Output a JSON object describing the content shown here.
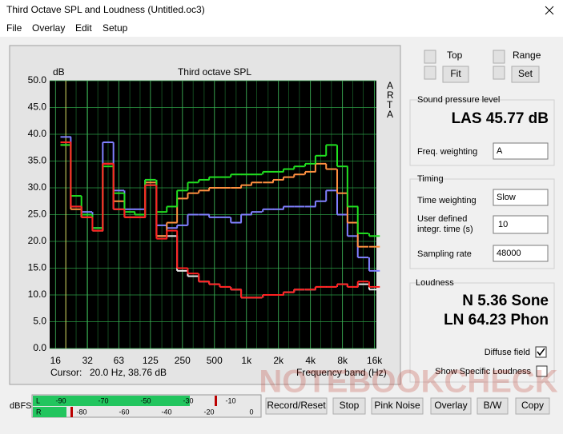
{
  "window": {
    "title": "Third Octave SPL and Loudness (Untitled.oc3)"
  },
  "menu": [
    "File",
    "Overlay",
    "Edit",
    "Setup"
  ],
  "chart_data": {
    "type": "step",
    "title": "Third octave SPL",
    "y_unit": "dB",
    "brand": "ARTA",
    "x_label": "Frequency band (Hz)",
    "cursor_label": "Cursor:",
    "cursor_value": "20.0 Hz, 38.76 dB",
    "x": [
      20,
      25,
      31.5,
      40,
      50,
      63,
      80,
      100,
      125,
      160,
      200,
      250,
      315,
      400,
      500,
      630,
      800,
      1000,
      1250,
      1600,
      2000,
      2500,
      3150,
      4000,
      5000,
      6300,
      8000,
      10000,
      12500,
      16000
    ],
    "xlim": [
      14.1,
      16670
    ],
    "xscale": "log",
    "xticks": [
      16,
      32,
      63,
      125,
      250,
      500,
      {
        "value": 1000,
        "label": "1k"
      },
      {
        "value": 2000,
        "label": "2k"
      },
      {
        "value": 4000,
        "label": "4k"
      },
      {
        "value": 8000,
        "label": "8k"
      },
      {
        "value": 16000,
        "label": "16k"
      }
    ],
    "ylim": [
      0,
      50
    ],
    "yticks": [
      {
        "value": 0,
        "label": "0.0"
      },
      {
        "value": 5,
        "label": "5.0"
      },
      {
        "value": 10,
        "label": "10.0"
      },
      {
        "value": 15,
        "label": "15.0"
      },
      {
        "value": 20,
        "label": "20.0"
      },
      {
        "value": 25,
        "label": "25.0"
      },
      {
        "value": 30,
        "label": "30.0"
      },
      {
        "value": 35,
        "label": "35.0"
      },
      {
        "value": 40,
        "label": "40.0"
      },
      {
        "value": 45,
        "label": "45.0"
      },
      {
        "value": 50,
        "label": "50.0"
      }
    ],
    "grid": true,
    "series": [
      {
        "color": "#e8e8e8",
        "values": [
          38.5,
          26.5,
          24.5,
          22,
          34.5,
          26,
          24.5,
          24.5,
          30.5,
          21,
          21,
          14.5,
          13.5,
          12.5,
          12,
          11.5,
          11,
          9.5,
          9.5,
          10,
          10,
          10.5,
          11,
          11,
          11.5,
          11.5,
          12,
          11.5,
          12,
          11
        ]
      },
      {
        "color": "#8080ff",
        "values": [
          39.5,
          26.5,
          25.5,
          22.5,
          38.5,
          29.5,
          26,
          26,
          31.5,
          23,
          22.5,
          23,
          25,
          25,
          24.5,
          24.5,
          23.5,
          25,
          25.5,
          26,
          26,
          26.5,
          26.5,
          26.5,
          27.5,
          29.5,
          25,
          21,
          17,
          14.5
        ]
      },
      {
        "color": "#ff9040",
        "values": [
          38,
          26,
          24.5,
          22,
          34.5,
          27.5,
          24.5,
          24.5,
          31,
          21,
          23.5,
          28,
          29,
          29.5,
          30,
          30,
          30,
          30.5,
          31,
          31,
          31.5,
          32,
          32.5,
          33,
          34.5,
          33.5,
          29,
          23.5,
          19,
          19
        ]
      },
      {
        "color": "#20e020",
        "values": [
          38,
          28.5,
          25,
          22.5,
          34,
          29,
          25.5,
          25,
          31.5,
          25.5,
          26.5,
          29.5,
          31,
          31.5,
          32,
          32,
          32.5,
          32.5,
          32.5,
          33,
          33,
          33.5,
          34,
          34.5,
          36,
          38,
          34,
          26.5,
          21.5,
          21
        ]
      },
      {
        "color": "#ff2020",
        "values": [
          38.5,
          26.5,
          24.5,
          22,
          34.5,
          26,
          24.5,
          24.5,
          30.5,
          20.5,
          22,
          15,
          14,
          12.5,
          12,
          11.5,
          11,
          9.5,
          9.5,
          10,
          10,
          10.5,
          11,
          11,
          11.5,
          11.5,
          12,
          11.5,
          12.5,
          11.5
        ]
      }
    ]
  },
  "controls": {
    "top": "Top",
    "fit": "Fit",
    "range": "Range",
    "set": "Set"
  },
  "spl": {
    "heading": "Sound pressure level",
    "reading": "LAS 45.77 dB",
    "weighting_label": "Freq. weighting",
    "weighting": "A"
  },
  "timing": {
    "heading": "Timing",
    "time_weighting_label": "Time weighting",
    "time_weighting": "Slow",
    "integr_label_1": "User defined",
    "integr_label_2": "integr. time (s)",
    "integr_time": "10",
    "rate_label": "Sampling rate",
    "rate": "48000"
  },
  "loudness": {
    "heading": "Loudness",
    "sone": "N 5.36 Sone",
    "phon": "LN 64.23 Phon",
    "diffuse": "Diffuse field",
    "specific": "Show Specific Loudness"
  },
  "meter": {
    "label": "dBFS",
    "left": "L",
    "right": "R",
    "top_ticks": [
      "-90",
      "-70",
      "-50",
      "-30",
      "-10"
    ],
    "bottom_ticks": [
      "-80",
      "-60",
      "-40",
      "-20",
      "0"
    ]
  },
  "buttons": [
    "Record/Reset",
    "Stop",
    "Pink Noise",
    "Overlay",
    "B/W",
    "Copy"
  ],
  "watermark": "NOTEBOOKCHECK"
}
